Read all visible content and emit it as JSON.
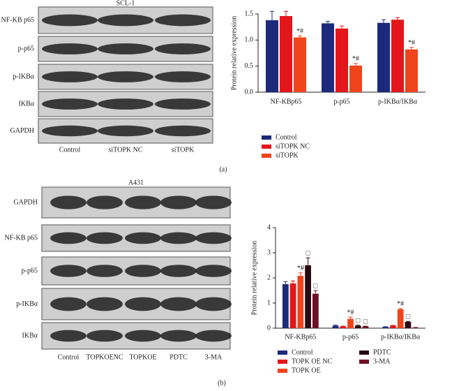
{
  "chart_data": [
    {
      "type": "bar",
      "ylabel": "Protein relative expression",
      "categories": [
        "NF-KBp65",
        "p-p65",
        "p-IKBα/IKBα"
      ],
      "series": [
        {
          "name": "Control",
          "color": "#1b2a7b",
          "values": [
            1.38,
            1.32,
            1.33
          ],
          "errors": [
            0.17,
            0.04,
            0.06
          ]
        },
        {
          "name": "siTOPK NC",
          "color": "#e3161b",
          "values": [
            1.46,
            1.22,
            1.39
          ],
          "errors": [
            0.09,
            0.05,
            0.04
          ]
        },
        {
          "name": "siTOPK",
          "color": "#f0441c",
          "values": [
            1.05,
            0.51,
            0.82
          ],
          "errors": [
            0.03,
            0.04,
            0.04
          ]
        }
      ],
      "ylim": [
        0,
        1.5
      ],
      "yticks": [
        {
          "value": 0,
          "label": "0.0"
        },
        {
          "value": 0.5,
          "label": "0.5"
        },
        {
          "value": 1,
          "label": "1.0"
        },
        {
          "value": 1.5,
          "label": "1.5"
        }
      ],
      "annotations": [
        {
          "series": 2,
          "index": 0,
          "text": "*#"
        },
        {
          "series": 2,
          "index": 1,
          "text": "*#"
        },
        {
          "series": 2,
          "index": 2,
          "text": "*#"
        }
      ]
    },
    {
      "type": "bar",
      "ylabel": "Protein relative expression",
      "categories": [
        "NF-KBp65",
        "p-p65",
        "p-IKBα/IKBα"
      ],
      "series": [
        {
          "name": "Control",
          "color": "#1b2a7b",
          "values": [
            1.75,
            0.1,
            0.05
          ],
          "errors": [
            0.1,
            0.02,
            0.01
          ]
        },
        {
          "name": "TOPK OE NC",
          "color": "#e3161b",
          "values": [
            1.78,
            0.07,
            0.1
          ],
          "errors": [
            0.1,
            0.01,
            0.01
          ]
        },
        {
          "name": "TOPK OE",
          "color": "#f0441c",
          "values": [
            2.08,
            0.37,
            0.75
          ],
          "errors": [
            0.12,
            0.07,
            0.03
          ]
        },
        {
          "name": "PDTC",
          "color": "#2a0a12",
          "values": [
            2.5,
            0.1,
            0.25
          ],
          "errors": [
            0.3,
            0.02,
            0.02
          ]
        },
        {
          "name": "3-MA",
          "color": "#6e1023",
          "values": [
            1.37,
            0.07,
            0.02
          ],
          "errors": [
            0.12,
            0.01,
            0.01
          ]
        }
      ],
      "ylim": [
        0,
        4
      ],
      "yticks": [
        0,
        1,
        2,
        3,
        4
      ],
      "annotations": [
        {
          "series": 2,
          "index": 0,
          "text": "*#"
        },
        {
          "series": 3,
          "index": 0,
          "text": "□"
        },
        {
          "series": 4,
          "index": 0,
          "text": "□"
        },
        {
          "series": 2,
          "index": 1,
          "text": "*#"
        },
        {
          "series": 3,
          "index": 1,
          "text": "□"
        },
        {
          "series": 4,
          "index": 1,
          "text": "□"
        },
        {
          "series": 2,
          "index": 2,
          "text": "*#"
        },
        {
          "series": 3,
          "index": 2,
          "text": "□"
        }
      ]
    }
  ],
  "blots": [
    {
      "title": "SCL-1",
      "rows": [
        "NF-KB p65",
        "p-p65",
        "p-IKBα",
        "IKBα",
        "GAPDH"
      ],
      "lanes": [
        "Control",
        "siTOPK NC",
        "siTOPK"
      ],
      "panel": "(a)"
    },
    {
      "title": "A431",
      "rows": [
        "GAPDH",
        "NF-KB p65",
        "p-p65",
        "p-IKBα",
        "IKBα"
      ],
      "lanes": [
        "Control",
        "TOPKOENC",
        "TOPKOE",
        "PDTC",
        "3-MA"
      ],
      "panel": "(b)"
    }
  ]
}
